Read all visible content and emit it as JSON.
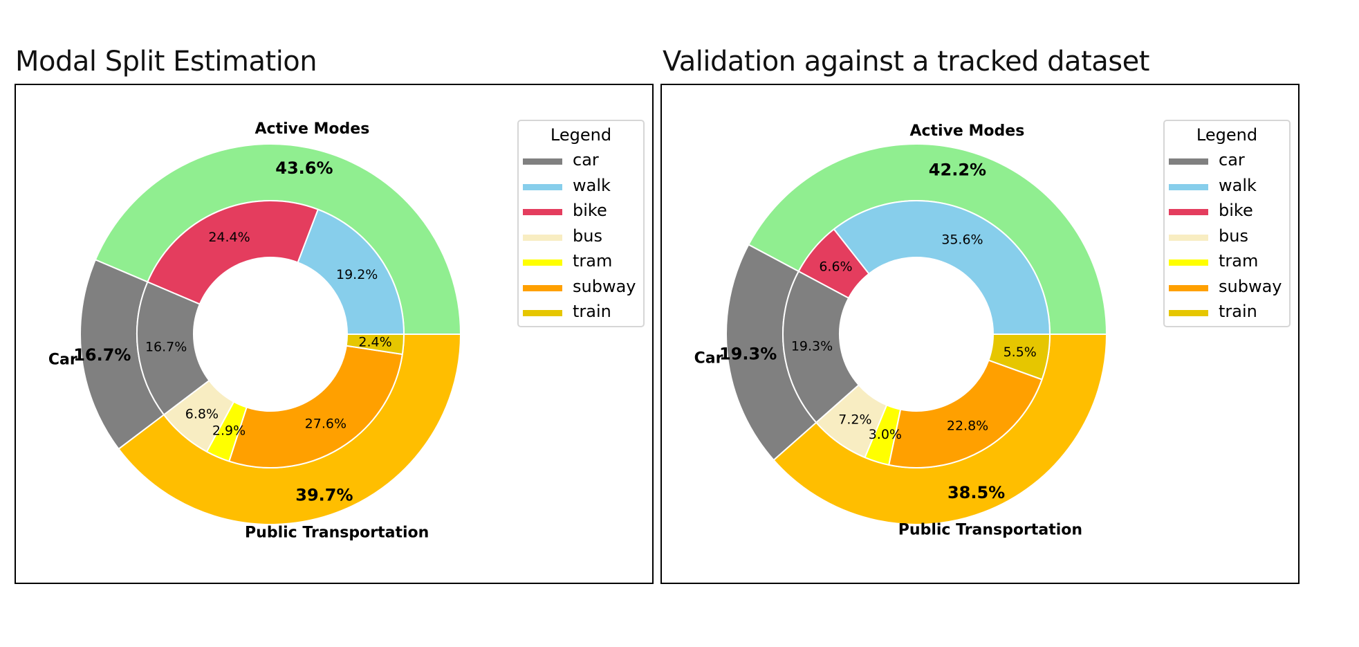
{
  "colors": {
    "car": "#808080",
    "walk": "#87ceeb",
    "bike": "#e43d5e",
    "bus": "#f8edc2",
    "tram": "#ffff00",
    "subway": "#ffa000",
    "train": "#e6c600",
    "active_modes": "#90ee90",
    "public_transportation": "#ffbe00"
  },
  "chart_data": [
    {
      "type": "pie",
      "title": "Modal Split Estimation",
      "legend": {
        "title": "Legend",
        "placement": "top-right",
        "entries": [
          "car",
          "walk",
          "bike",
          "bus",
          "tram",
          "subway",
          "train"
        ]
      },
      "outer_ring": [
        {
          "name": "Active Modes",
          "label": "43.6%",
          "value": 43.6,
          "color": "#90ee90"
        },
        {
          "name": "Car",
          "label": "16.7%",
          "value": 16.7,
          "color": "#808080"
        },
        {
          "name": "Public Transportation",
          "label": "39.7%",
          "value": 39.7,
          "color": "#ffbe00"
        }
      ],
      "inner_ring": [
        {
          "name": "walk",
          "label": "19.2%",
          "value": 19.2,
          "color": "#87ceeb"
        },
        {
          "name": "bike",
          "label": "24.4%",
          "value": 24.4,
          "color": "#e43d5e"
        },
        {
          "name": "car",
          "label": "16.7%",
          "value": 16.7,
          "color": "#808080"
        },
        {
          "name": "bus",
          "label": "6.8%",
          "value": 6.8,
          "color": "#f8edc2"
        },
        {
          "name": "tram",
          "label": "2.9%",
          "value": 2.9,
          "color": "#ffff00"
        },
        {
          "name": "subway",
          "label": "27.6%",
          "value": 27.6,
          "color": "#ffa000"
        },
        {
          "name": "train",
          "label": "2.4%",
          "value": 2.4,
          "color": "#e6c600"
        }
      ]
    },
    {
      "type": "pie",
      "title": "Validation against a tracked dataset",
      "legend": {
        "title": "Legend",
        "placement": "top-right",
        "entries": [
          "car",
          "walk",
          "bike",
          "bus",
          "tram",
          "subway",
          "train"
        ]
      },
      "outer_ring": [
        {
          "name": "Active Modes",
          "label": "42.2%",
          "value": 42.2,
          "color": "#90ee90"
        },
        {
          "name": "Car",
          "label": "19.3%",
          "value": 19.3,
          "color": "#808080"
        },
        {
          "name": "Public Transportation",
          "label": "38.5%",
          "value": 38.5,
          "color": "#ffbe00"
        }
      ],
      "inner_ring": [
        {
          "name": "walk",
          "label": "35.6%",
          "value": 35.6,
          "color": "#87ceeb"
        },
        {
          "name": "bike",
          "label": "6.6%",
          "value": 6.6,
          "color": "#e43d5e"
        },
        {
          "name": "car",
          "label": "19.3%",
          "value": 19.3,
          "color": "#808080"
        },
        {
          "name": "bus",
          "label": "7.2%",
          "value": 7.2,
          "color": "#f8edc2"
        },
        {
          "name": "tram",
          "label": "3.0%",
          "value": 3.0,
          "color": "#ffff00"
        },
        {
          "name": "subway",
          "label": "22.8%",
          "value": 22.8,
          "color": "#ffa000"
        },
        {
          "name": "train",
          "label": "5.5%",
          "value": 5.5,
          "color": "#e6c600"
        }
      ]
    }
  ]
}
